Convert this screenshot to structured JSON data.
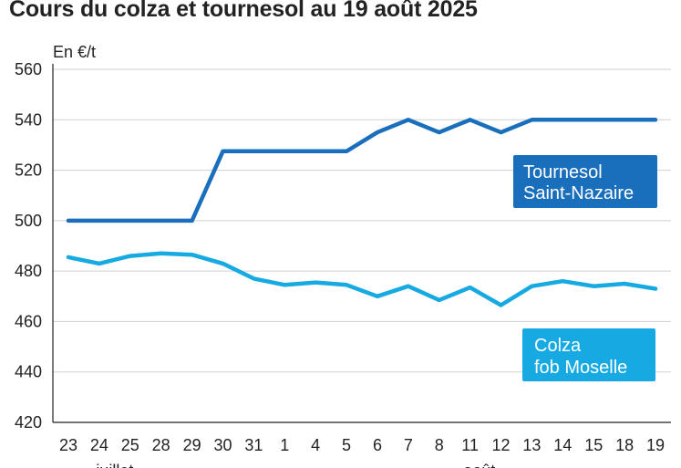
{
  "title": "Cours du colza et tournesol au 19 août 2025",
  "unit_label": "En €/t",
  "colors": {
    "tournesol": "#1a6fbd",
    "colza": "#17a9e1",
    "grid": "#d0d0d0",
    "axis": "#222222"
  },
  "chart_data": {
    "type": "line",
    "title": "Cours du colza et tournesol au 19 août 2025",
    "ylabel": "En €/t",
    "ylim": [
      420,
      560
    ],
    "yticks": [
      420,
      440,
      460,
      480,
      500,
      520,
      540,
      560
    ],
    "grid": "horizontal",
    "x": [
      "23",
      "24",
      "25",
      "28",
      "29",
      "30",
      "31",
      "1",
      "4",
      "5",
      "6",
      "7",
      "8",
      "11",
      "12",
      "13",
      "14",
      "15",
      "18",
      "19"
    ],
    "month_labels": [
      {
        "text": "juillet",
        "at_index": 1.5
      },
      {
        "text": "août",
        "at_index": 13.3
      }
    ],
    "series": [
      {
        "name": "Tournesol Saint-Nazaire",
        "label_lines": [
          "Tournesol",
          "Saint-Nazaire"
        ],
        "color": "#1a6fbd",
        "values": [
          500,
          500,
          500,
          500,
          500,
          527.5,
          527.5,
          527.5,
          527.5,
          527.5,
          535,
          540,
          535,
          540,
          535,
          540,
          540,
          540,
          540,
          540
        ]
      },
      {
        "name": "Colza fob Moselle",
        "label_lines": [
          "Colza",
          "fob Moselle"
        ],
        "color": "#17a9e1",
        "values": [
          485.5,
          483,
          486,
          487,
          486.5,
          483,
          477,
          474.5,
          475.5,
          474.5,
          470,
          474,
          468.5,
          473.5,
          466.5,
          474,
          476,
          474,
          475,
          473
        ]
      }
    ]
  }
}
